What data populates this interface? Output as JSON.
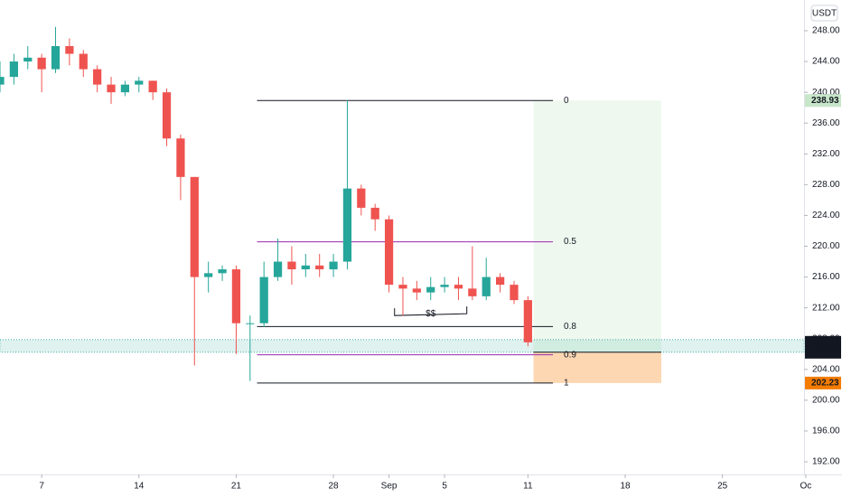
{
  "chart_data": {
    "type": "candlestick",
    "currency": "USDT",
    "x": [
      4,
      5,
      6,
      7,
      8,
      9,
      10,
      11,
      12,
      13,
      14,
      15,
      16,
      17,
      18,
      19,
      20,
      21,
      22,
      23,
      24,
      25,
      26,
      27,
      28,
      29,
      30,
      31,
      32,
      33,
      34,
      35,
      36,
      37,
      38,
      39,
      40,
      41,
      42
    ],
    "open": [
      241,
      242,
      244,
      244.5,
      243,
      246,
      245,
      243,
      241,
      240,
      241,
      241.5,
      240,
      234,
      229,
      216,
      216.5,
      217,
      210,
      210,
      216,
      218,
      217,
      217.5,
      217,
      218,
      227.5,
      225,
      223.5,
      215,
      214.5,
      214,
      214.7,
      215,
      214.5,
      213.5,
      216,
      215,
      213
    ],
    "high": [
      244,
      245,
      246,
      245,
      248.5,
      247,
      245.5,
      243.5,
      242,
      241.5,
      242,
      241.5,
      240.5,
      234.5,
      229,
      218,
      217.5,
      217.5,
      211,
      218,
      221,
      220,
      219,
      219,
      219,
      239,
      228,
      225.5,
      224,
      216,
      215.5,
      216,
      216,
      216,
      220,
      218.5,
      216.5,
      215.5,
      213.5
    ],
    "low": [
      240,
      241,
      243,
      240,
      242.5,
      243.5,
      242,
      240,
      238.5,
      239.5,
      240,
      239,
      233,
      226,
      204.5,
      214,
      215.5,
      206,
      202.5,
      209.5,
      215.5,
      215,
      216,
      216,
      216,
      217,
      224,
      222,
      214,
      211,
      213,
      213,
      214,
      213,
      213,
      213,
      214,
      212.5,
      207
    ],
    "close": [
      242,
      244,
      244.5,
      243,
      246,
      245,
      243,
      241,
      240,
      241,
      241.5,
      240,
      234,
      229,
      216,
      216.5,
      217,
      210,
      210,
      216,
      218,
      217,
      217.5,
      217,
      218,
      227.5,
      225,
      223.5,
      215,
      214.5,
      214,
      214.7,
      215,
      214.5,
      213.5,
      216,
      215,
      213,
      207.52
    ],
    "up_color": "#26a69a",
    "down_color": "#ef5350",
    "xlim": [
      4,
      62.2
    ],
    "xticks": [
      7,
      14,
      21,
      28,
      {
        "value": 32,
        "label": "Sep"
      },
      {
        "value": 36,
        "label": "5"
      },
      {
        "value": 42,
        "label": "11"
      },
      {
        "value": 49,
        "label": "18"
      },
      {
        "value": 56,
        "label": "25"
      },
      {
        "value": 62,
        "label": "Oc"
      }
    ],
    "ylim": [
      190.36,
      251.99
    ],
    "yticks": [
      {
        "value": 192,
        "label": "192.00"
      },
      {
        "value": 196,
        "label": "196.00"
      },
      {
        "value": 200,
        "label": "200.00"
      },
      {
        "value": 204,
        "label": "204.00"
      },
      {
        "value": 208,
        "label": "208.00"
      },
      {
        "value": 212,
        "label": "212.00"
      },
      {
        "value": 216,
        "label": "216.00"
      },
      {
        "value": 220,
        "label": "220.00"
      },
      {
        "value": 224,
        "label": "224.00"
      },
      {
        "value": 228,
        "label": "228.00"
      },
      {
        "value": 232,
        "label": "232.00"
      },
      {
        "value": 236,
        "label": "236.00"
      },
      {
        "value": 240,
        "label": "240.00"
      },
      {
        "value": 244,
        "label": "244.00"
      },
      {
        "value": 248,
        "label": "248.00"
      }
    ],
    "zone": [
      206.23,
      207.52
    ],
    "fib": {
      "from": 238.93,
      "to": 202.23,
      "levels": [
        0,
        0.5,
        0.8,
        0.9,
        1
      ],
      "colors": [
        "#131722",
        "#9c27b0",
        "#131722",
        "#9c27b0",
        "#131722"
      ],
      "x": [
        22.5,
        43.8
      ]
    },
    "position": {
      "x": [
        42.4,
        51.6
      ],
      "entry": 206.23,
      "target": 238.93,
      "stop": 202.23
    },
    "annotation": {
      "text": "$$",
      "x": [
        32.4,
        37.6
      ],
      "y": 211
    },
    "price_labels": [
      {
        "value": 238.93,
        "bg": "#c8e6c9",
        "fg": "#1b5e20"
      },
      {
        "value": 207.52,
        "bg": "#131722",
        "fg": "#ffffff"
      },
      {
        "value": 206.23,
        "bg": "#131722",
        "fg": "#ffffff"
      },
      {
        "value": 202.23,
        "bg": "#f57c00",
        "fg": "#ffffff"
      }
    ]
  }
}
